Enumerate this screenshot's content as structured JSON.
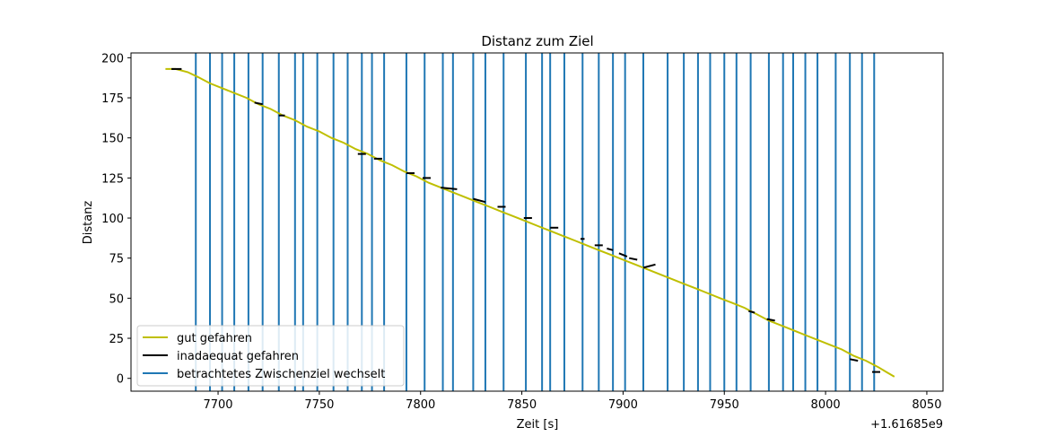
{
  "chart_data": {
    "type": "line",
    "title": "Distanz zum Ziel",
    "xlabel": "Zeit [s]",
    "ylabel": "Distanz",
    "x_offset_label": "+1.61685e9",
    "xlim": [
      7657,
      8058
    ],
    "ylim": [
      -8,
      203
    ],
    "xticks": [
      7700,
      7750,
      7800,
      7850,
      7900,
      7950,
      8000,
      8050
    ],
    "yticks": [
      0,
      25,
      50,
      75,
      100,
      125,
      150,
      175,
      200
    ],
    "grid": false,
    "legend_position": "lower-left",
    "series": [
      {
        "name": "gut gefahren",
        "color": "#bfbf00",
        "style": "line",
        "x": [
          7674,
          7679,
          7685,
          7690,
          7696,
          7702,
          7708,
          7714,
          7720,
          7726,
          7732,
          7738,
          7744,
          7750,
          7756,
          7762,
          7768,
          7774,
          7780,
          7786,
          7792,
          7798,
          7804,
          7810,
          7816,
          7822,
          7828,
          7834,
          7840,
          7846,
          7852,
          7858,
          7864,
          7870,
          7876,
          7882,
          7888,
          7894,
          7900,
          7906,
          7912,
          7918,
          7924,
          7930,
          7936,
          7942,
          7948,
          7954,
          7960,
          7966,
          7972,
          7978,
          7984,
          7990,
          7996,
          8002,
          8008,
          8014,
          8020,
          8026,
          8030,
          8034
        ],
        "y": [
          193,
          193,
          191,
          188,
          184,
          181,
          178,
          175,
          171,
          168,
          164,
          161,
          157,
          154,
          150,
          147,
          143,
          140,
          136,
          133,
          129,
          126,
          122,
          119,
          116,
          113,
          110,
          107,
          104,
          101,
          98,
          95,
          92,
          89,
          86,
          83,
          80,
          77,
          74,
          71,
          68,
          65,
          62,
          59,
          56,
          53,
          50,
          47,
          44,
          40,
          36,
          33,
          30,
          27,
          24,
          21,
          18,
          14,
          11,
          7,
          4,
          1
        ]
      },
      {
        "name": "inadaequat gefahren",
        "color": "#000000",
        "style": "segments",
        "segments": [
          {
            "x": [
              7677,
              7682
            ],
            "y": [
              193,
              193
            ]
          },
          {
            "x": [
              7718,
              7722
            ],
            "y": [
              172,
              171
            ]
          },
          {
            "x": [
              7730,
              7733
            ],
            "y": [
              164,
              164
            ]
          },
          {
            "x": [
              7769,
              7773
            ],
            "y": [
              140,
              140
            ]
          },
          {
            "x": [
              7777,
              7781
            ],
            "y": [
              137,
              137
            ]
          },
          {
            "x": [
              7793,
              7797
            ],
            "y": [
              128,
              128
            ]
          },
          {
            "x": [
              7801,
              7805
            ],
            "y": [
              125,
              125
            ]
          },
          {
            "x": [
              7810,
              7818
            ],
            "y": [
              119,
              118
            ]
          },
          {
            "x": [
              7826,
              7832
            ],
            "y": [
              112,
              110
            ]
          },
          {
            "x": [
              7838,
              7842
            ],
            "y": [
              107,
              107
            ]
          },
          {
            "x": [
              7851,
              7855
            ],
            "y": [
              100,
              100
            ]
          },
          {
            "x": [
              7864,
              7868
            ],
            "y": [
              94,
              94
            ]
          },
          {
            "x": [
              7879,
              7881
            ],
            "y": [
              87,
              87
            ]
          },
          {
            "x": [
              7886,
              7890
            ],
            "y": [
              83,
              83
            ]
          },
          {
            "x": [
              7892,
              7895
            ],
            "y": [
              81,
              80
            ]
          },
          {
            "x": [
              7898,
              7902
            ],
            "y": [
              78,
              76
            ]
          },
          {
            "x": [
              7903,
              7907
            ],
            "y": [
              75,
              74
            ]
          },
          {
            "x": [
              7910,
              7916
            ],
            "y": [
              69,
              71
            ]
          },
          {
            "x": [
              7962,
              7965
            ],
            "y": [
              42,
              41
            ]
          },
          {
            "x": [
              7971,
              7975
            ],
            "y": [
              37,
              36
            ]
          },
          {
            "x": [
              8012,
              8016
            ],
            "y": [
              12,
              11
            ]
          },
          {
            "x": [
              8023,
              8027
            ],
            "y": [
              4,
              4
            ]
          }
        ]
      },
      {
        "name": "betrachtetes Zwischenziel wechselt",
        "color": "#1f77b4",
        "style": "vlines",
        "x": [
          7689,
          7696,
          7702,
          7708,
          7715,
          7722,
          7730,
          7738,
          7742,
          7749,
          7757,
          7764,
          7771,
          7776,
          7782,
          7793,
          7802,
          7811,
          7816,
          7826,
          7832,
          7841,
          7852,
          7860,
          7864,
          7871,
          7880,
          7888,
          7895,
          7901,
          7910,
          7922,
          7930,
          7937,
          7943,
          7950,
          7956,
          7963,
          7972,
          7979,
          7984,
          7990,
          7996,
          8005,
          8012,
          8018,
          8024
        ]
      }
    ]
  }
}
